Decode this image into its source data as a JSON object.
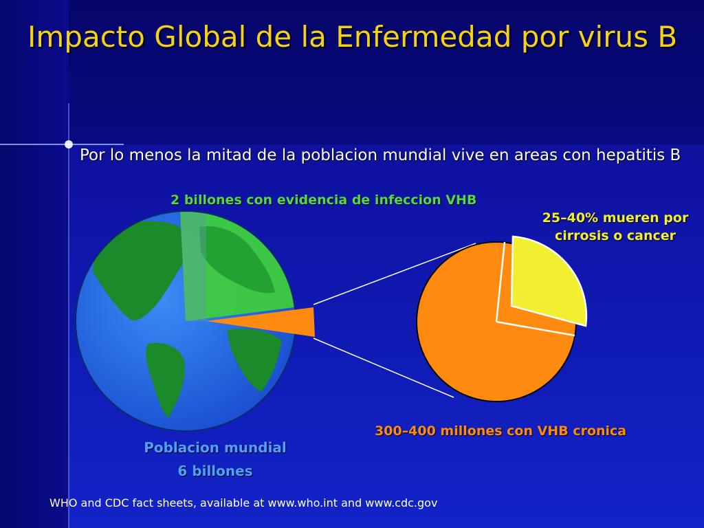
{
  "title": "Impacto Global de la Enfermedad por virus B",
  "subtitle": "Por lo menos  la mitad de la poblacion mundial vive en areas con hepatitis B",
  "labels": {
    "infected": "2 billones con evidencia de infeccion VHB",
    "die": "25–40% mueren por cirrosis o cancer",
    "chronic": "300–400 millones con VHB cronica",
    "population_line1": "Poblacion mundial",
    "population_line2": "6 billones"
  },
  "source": "WHO and CDC fact sheets, available at www.who.int and www.cdc.gov",
  "colors": {
    "title": "#f5d21a",
    "infected": "#52d84a",
    "die": "#f2ee30",
    "chronic": "#ff8a10",
    "population": "#4fa0ff"
  }
}
